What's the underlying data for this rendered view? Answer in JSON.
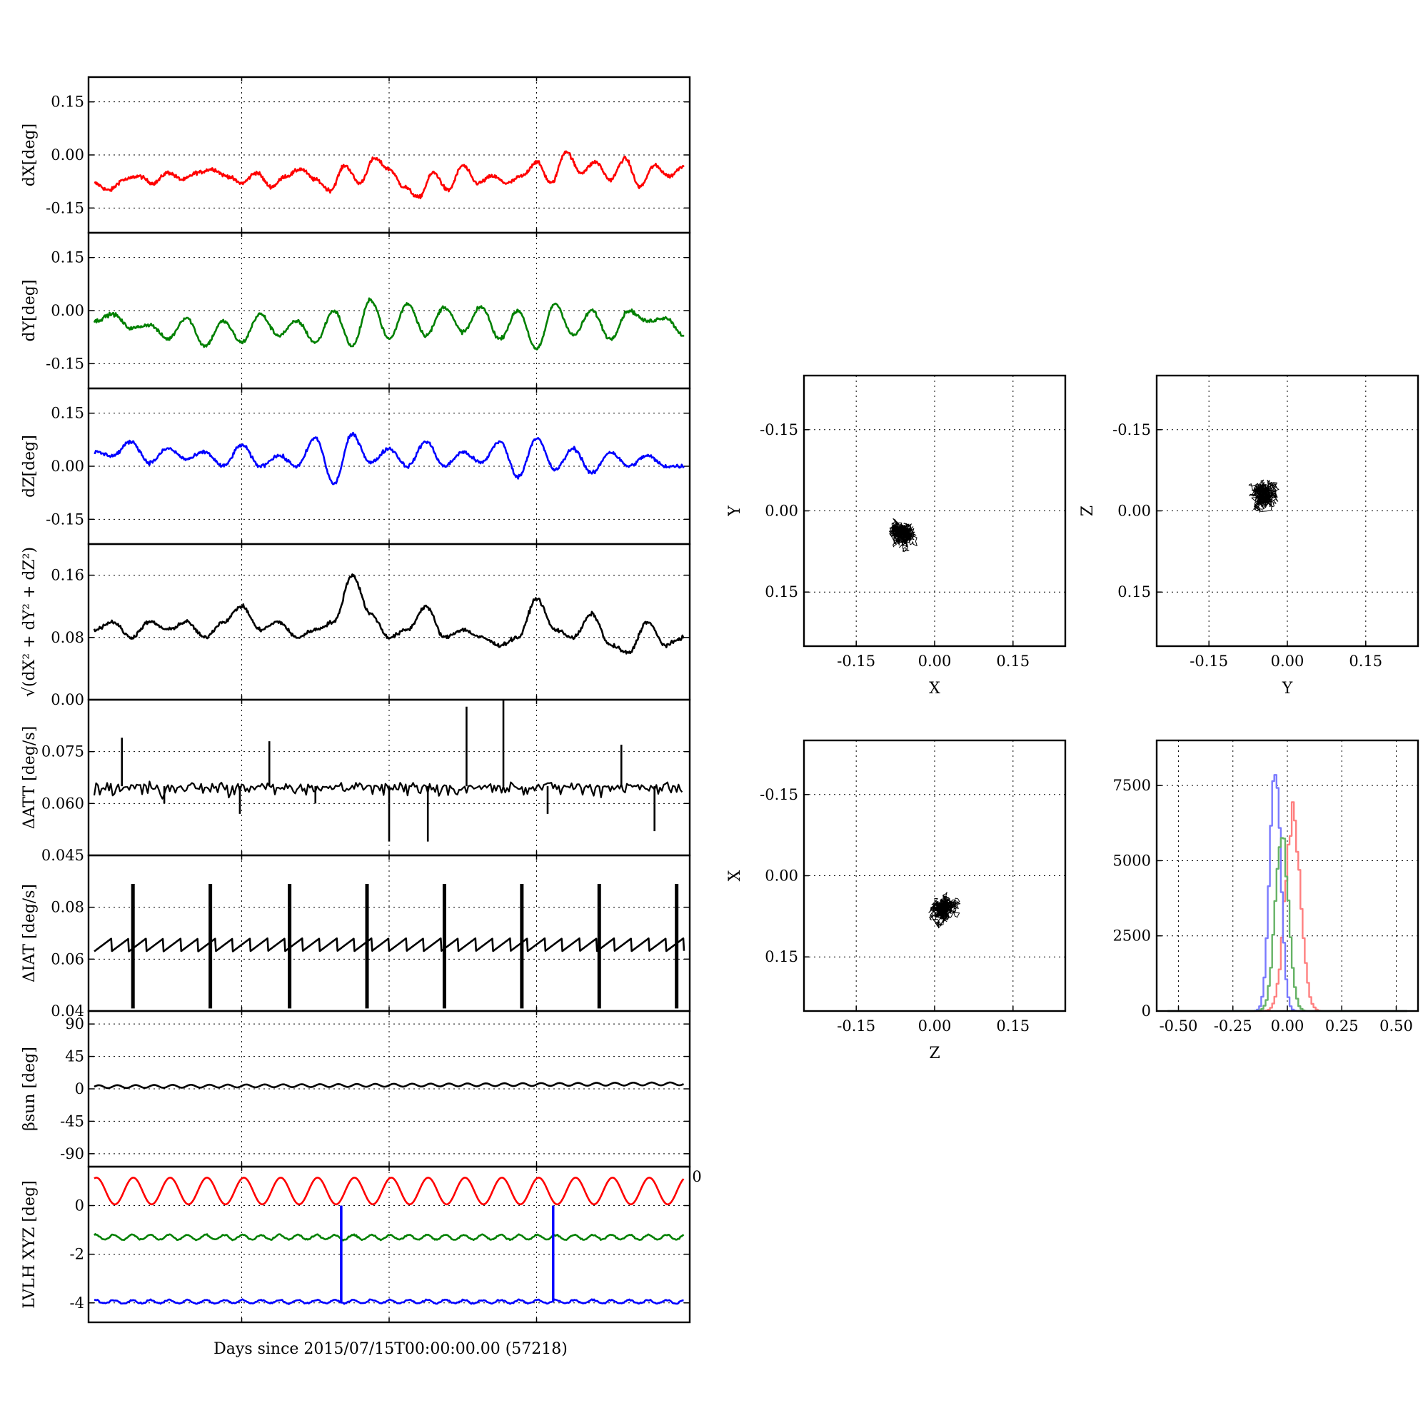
{
  "figure": {
    "xlabel": "Days since 2015/07/15T00:00:00.00 (57218)",
    "stray_tick_right": "0",
    "colors": {
      "red": "#ff0000",
      "green": "#008000",
      "blue": "#0000ff",
      "black": "#000000"
    }
  },
  "chart_data": [
    {
      "id": "dx",
      "type": "line",
      "ylabel": "dX[deg]",
      "ylim": [
        -0.22,
        0.22
      ],
      "yticks": [
        "0.15",
        "0.00",
        "-0.15"
      ],
      "yticks_values": [
        0.15,
        0.0,
        -0.15
      ],
      "grid": true,
      "series": [
        {
          "color": "#ff0000",
          "x": [
            0,
            0.4,
            0.8,
            1.2,
            1.6,
            2.0,
            2.4,
            2.8,
            3.2,
            3.6,
            4.0,
            4.4,
            4.8,
            5.2,
            5.6,
            6.0,
            6.4,
            6.8,
            7.2,
            7.6,
            8.0,
            8.4,
            8.8,
            9.2,
            9.6,
            10.0,
            10.4,
            10.8,
            11.2,
            11.6,
            12.0,
            12.4,
            12.8,
            13.2,
            13.6,
            14.0,
            14.4,
            14.8,
            15.2,
            15.6,
            16.0
          ],
          "y": [
            -0.08,
            -0.1,
            -0.07,
            -0.06,
            -0.08,
            -0.05,
            -0.07,
            -0.05,
            -0.04,
            -0.06,
            -0.08,
            -0.05,
            -0.09,
            -0.06,
            -0.04,
            -0.07,
            -0.1,
            -0.03,
            -0.08,
            -0.01,
            -0.04,
            -0.09,
            -0.12,
            -0.05,
            -0.1,
            -0.03,
            -0.08,
            -0.06,
            -0.08,
            -0.06,
            -0.02,
            -0.08,
            0.01,
            -0.05,
            -0.02,
            -0.07,
            -0.01,
            -0.09,
            -0.03,
            -0.06,
            -0.03
          ]
        }
      ]
    },
    {
      "id": "dy",
      "type": "line",
      "ylabel": "dY[deg]",
      "ylim": [
        -0.22,
        0.22
      ],
      "yticks": [
        "0.15",
        "0.00",
        "-0.15"
      ],
      "yticks_values": [
        0.15,
        0.0,
        -0.15
      ],
      "grid": true,
      "series": [
        {
          "color": "#008000",
          "x": [
            0,
            0.5,
            1.0,
            1.5,
            2.0,
            2.5,
            3.0,
            3.5,
            4.0,
            4.5,
            5.0,
            5.5,
            6.0,
            6.5,
            7.0,
            7.5,
            8.0,
            8.5,
            9.0,
            9.5,
            10.0,
            10.5,
            11.0,
            11.5,
            12.0,
            12.5,
            13.0,
            13.5,
            14.0,
            14.5,
            15.0,
            15.5,
            16.0
          ],
          "y": [
            -0.03,
            -0.01,
            -0.05,
            -0.04,
            -0.08,
            -0.02,
            -0.1,
            -0.03,
            -0.09,
            -0.01,
            -0.07,
            -0.03,
            -0.09,
            0.0,
            -0.1,
            0.03,
            -0.08,
            0.02,
            -0.07,
            0.01,
            -0.06,
            0.01,
            -0.08,
            0.0,
            -0.11,
            0.02,
            -0.07,
            0.0,
            -0.08,
            0.0,
            -0.03,
            -0.02,
            -0.07
          ]
        }
      ]
    },
    {
      "id": "dz",
      "type": "line",
      "ylabel": "dZ[deg]",
      "ylim": [
        -0.22,
        0.22
      ],
      "yticks": [
        "0.15",
        "0.00",
        "-0.15"
      ],
      "yticks_values": [
        0.15,
        0.0,
        -0.15
      ],
      "grid": true,
      "series": [
        {
          "color": "#0000ff",
          "x": [
            0,
            0.5,
            1.0,
            1.5,
            2.0,
            2.5,
            3.0,
            3.5,
            4.0,
            4.5,
            5.0,
            5.5,
            6.0,
            6.5,
            7.0,
            7.5,
            8.0,
            8.5,
            9.0,
            9.5,
            10.0,
            10.5,
            11.0,
            11.5,
            12.0,
            12.5,
            13.0,
            13.5,
            14.0,
            14.5,
            15.0,
            15.5,
            16.0
          ],
          "y": [
            0.04,
            0.03,
            0.07,
            0.01,
            0.05,
            0.02,
            0.04,
            0.0,
            0.06,
            0.0,
            0.03,
            0.0,
            0.08,
            -0.05,
            0.09,
            0.01,
            0.05,
            0.0,
            0.07,
            0.0,
            0.04,
            0.01,
            0.07,
            -0.03,
            0.08,
            -0.01,
            0.05,
            -0.02,
            0.04,
            0.0,
            0.03,
            0.0,
            0.0
          ]
        }
      ]
    },
    {
      "id": "mag",
      "type": "line",
      "ylabel": "√(dX² + dY² + dZ²)",
      "ylim": [
        0.0,
        0.2
      ],
      "yticks": [
        "0.16",
        "0.08",
        "0.00"
      ],
      "yticks_values": [
        0.16,
        0.08,
        0.0
      ],
      "grid": true,
      "series": [
        {
          "color": "#000000",
          "x": [
            0,
            0.5,
            1.0,
            1.5,
            2.0,
            2.5,
            3.0,
            3.5,
            4.0,
            4.5,
            5.0,
            5.5,
            6.0,
            6.5,
            7.0,
            7.5,
            8.0,
            8.5,
            9.0,
            9.5,
            10.0,
            10.5,
            11.0,
            11.5,
            12.0,
            12.5,
            13.0,
            13.5,
            14.0,
            14.5,
            15.0,
            15.5,
            16.0
          ],
          "y": [
            0.09,
            0.1,
            0.08,
            0.1,
            0.09,
            0.1,
            0.08,
            0.1,
            0.12,
            0.09,
            0.1,
            0.08,
            0.09,
            0.1,
            0.16,
            0.11,
            0.08,
            0.09,
            0.12,
            0.08,
            0.09,
            0.08,
            0.07,
            0.08,
            0.13,
            0.09,
            0.08,
            0.11,
            0.07,
            0.06,
            0.1,
            0.07,
            0.08
          ]
        }
      ]
    },
    {
      "id": "datt",
      "type": "line",
      "ylabel": "ΔATT [deg/s]",
      "ylim": [
        0.045,
        0.09
      ],
      "yticks": [
        "0.075",
        "0.060",
        "0.045"
      ],
      "yticks_values": [
        0.075,
        0.06,
        0.045
      ],
      "grid": true,
      "series": [
        {
          "color": "#000000",
          "baseline": 0.065,
          "spikes": [
            {
              "x": 0.75,
              "y": 0.079
            },
            {
              "x": 4.75,
              "y": 0.078
            },
            {
              "x": 10.1,
              "y": 0.088
            },
            {
              "x": 11.1,
              "y": 0.092
            },
            {
              "x": 14.3,
              "y": 0.077
            },
            {
              "x": 3.95,
              "y": 0.057
            },
            {
              "x": 8.0,
              "y": 0.049
            },
            {
              "x": 9.05,
              "y": 0.049
            },
            {
              "x": 15.2,
              "y": 0.052
            },
            {
              "x": 12.3,
              "y": 0.057
            },
            {
              "x": 6.0,
              "y": 0.06
            },
            {
              "x": 1.9,
              "y": 0.06
            }
          ]
        }
      ]
    },
    {
      "id": "diat",
      "type": "line",
      "ylabel": "ΔIAT [deg/s]",
      "ylim": [
        0.04,
        0.1
      ],
      "yticks": [
        "0.08",
        "0.06",
        "0.04"
      ],
      "yticks_values": [
        0.08,
        0.06,
        0.04
      ],
      "grid": true,
      "series": [
        {
          "color": "#000000",
          "sawtooth_low": 0.063,
          "sawtooth_high": 0.068,
          "resets": [
            1.05,
            3.15,
            5.3,
            7.4,
            9.5,
            11.6,
            13.7,
            15.8
          ],
          "reset_max": 0.089,
          "reset_min": 0.041
        }
      ]
    },
    {
      "id": "beta",
      "type": "line",
      "ylabel": "βsun [deg]",
      "ylim": [
        -108,
        108
      ],
      "yticks": [
        "90",
        "45",
        "0",
        "-45",
        "-90"
      ],
      "yticks_values": [
        90,
        45,
        0,
        -45,
        -90
      ],
      "grid": true,
      "series": [
        {
          "color": "#000000",
          "mean_start": 3,
          "mean_end": 7,
          "amplitude": 2
        }
      ]
    },
    {
      "id": "lvlh",
      "type": "line",
      "ylabel": "LVLH XYZ [deg]",
      "ylim": [
        -4.8,
        1.6
      ],
      "yticks": [
        "0",
        "-2",
        "-4"
      ],
      "yticks_values": [
        0,
        -2,
        -4
      ],
      "grid": true,
      "series": [
        {
          "color": "#ff0000",
          "mean": 0.6,
          "amplitude": 0.55
        },
        {
          "color": "#008000",
          "mean": -1.3,
          "amplitude": 0.1
        },
        {
          "color": "#0000ff",
          "mean": -3.95,
          "amplitude": 0.07,
          "spikes": [
            {
              "x": 6.7,
              "y": 0.0
            },
            {
              "x": 12.45,
              "y": 0.0
            }
          ]
        }
      ]
    },
    {
      "id": "xy",
      "type": "scatter",
      "xlabel": "X",
      "ylabel": "Y",
      "xlim": [
        -0.25,
        0.25
      ],
      "ylim": [
        -0.25,
        0.25
      ],
      "xticks": [
        "-0.15",
        "0.00",
        "0.15"
      ],
      "yticks": [
        "0.15",
        "0.00",
        "-0.15"
      ],
      "ticks_values": [
        -0.15,
        0.0,
        0.15
      ],
      "grid": true,
      "cloud": {
        "cx": -0.06,
        "cy": -0.04,
        "sx": 0.03,
        "sy": 0.035,
        "min_x": -0.14,
        "max_x": 0.01,
        "min_y": -0.12,
        "max_y": 0.04
      }
    },
    {
      "id": "yz",
      "type": "scatter",
      "xlabel": "Y",
      "ylabel": "Z",
      "xlim": [
        -0.25,
        0.25
      ],
      "ylim": [
        -0.25,
        0.25
      ],
      "xticks": [
        "-0.15",
        "0.00",
        "0.15"
      ],
      "yticks": [
        "0.15",
        "0.00",
        "-0.15"
      ],
      "ticks_values": [
        -0.15,
        0.0,
        0.15
      ],
      "grid": true,
      "cloud": {
        "cx": -0.04,
        "cy": 0.03,
        "sx": 0.04,
        "sy": 0.025,
        "min_x": -0.12,
        "max_x": 0.04,
        "min_y": -0.05,
        "max_y": 0.1
      }
    },
    {
      "id": "zx",
      "type": "scatter",
      "xlabel": "Z",
      "ylabel": "X",
      "xlim": [
        -0.25,
        0.25
      ],
      "ylim": [
        -0.25,
        0.25
      ],
      "xticks": [
        "-0.15",
        "0.00",
        "0.15"
      ],
      "yticks": [
        "0.15",
        "0.00",
        "-0.15"
      ],
      "ticks_values": [
        -0.15,
        0.0,
        0.15
      ],
      "grid": true,
      "cloud": {
        "cx": 0.02,
        "cy": -0.06,
        "sx": 0.03,
        "sy": 0.025,
        "min_x": -0.05,
        "max_x": 0.1,
        "min_y": -0.14,
        "max_y": 0.01
      }
    },
    {
      "id": "hist",
      "type": "bar",
      "xlim": [
        -0.6,
        0.6
      ],
      "ylim": [
        0,
        9000
      ],
      "xticks": [
        "-0.50",
        "-0.25",
        "0.00",
        "0.25",
        "0.50"
      ],
      "xticks_values": [
        -0.5,
        -0.25,
        0.0,
        0.25,
        0.5
      ],
      "yticks": [
        "7500",
        "5000",
        "2500",
        "0"
      ],
      "yticks_values": [
        7500,
        5000,
        2500,
        0
      ],
      "grid": true,
      "series": [
        {
          "color": "#ff8080",
          "center": 0.02,
          "sigma": 0.035,
          "peak": 6600
        },
        {
          "color": "#7a7aff",
          "center": -0.06,
          "sigma": 0.025,
          "peak": 8300
        },
        {
          "color": "#66b366",
          "center": -0.03,
          "sigma": 0.03,
          "peak": 5900
        }
      ]
    }
  ]
}
